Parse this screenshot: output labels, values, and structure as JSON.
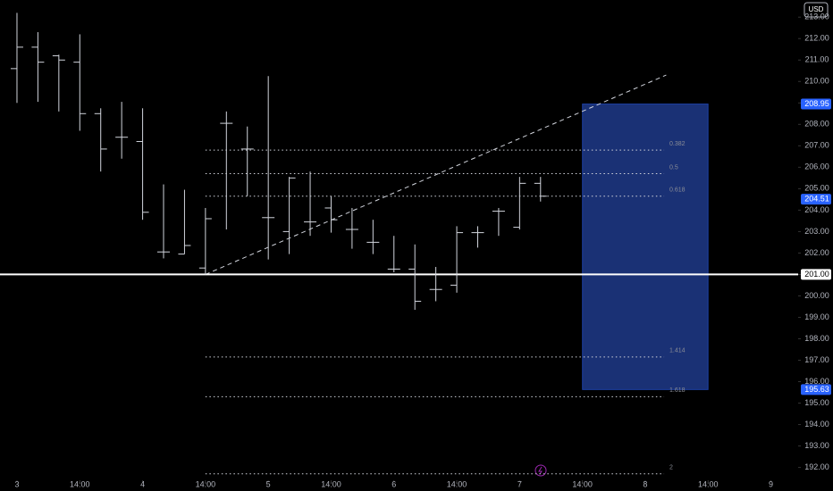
{
  "chart_data": {
    "type": "ohlc",
    "currency": "USD",
    "x": [
      0,
      1,
      2,
      3,
      4,
      5,
      6,
      7,
      8,
      9,
      10,
      11,
      12,
      13,
      14,
      15,
      16,
      17,
      18,
      19,
      20,
      21,
      22,
      23,
      24,
      25
    ],
    "open": [
      210.6,
      211.6,
      211.2,
      210.9,
      208.5,
      207.4,
      207.2,
      202.05,
      201.95,
      201.3,
      208.05,
      206.85,
      203.65,
      203.0,
      203.45,
      204.1,
      203.1,
      202.5,
      201.25,
      201.25,
      200.3,
      200.5,
      202.95,
      203.95,
      203.2,
      205.25
    ],
    "high": [
      213.2,
      212.3,
      211.25,
      212.2,
      208.75,
      209.05,
      208.75,
      205.2,
      204.95,
      204.1,
      208.6,
      207.9,
      210.25,
      205.55,
      205.8,
      204.65,
      204.1,
      203.55,
      202.8,
      202.4,
      201.35,
      203.25,
      203.25,
      204.1,
      205.55,
      205.55
    ],
    "low": [
      209.0,
      209.05,
      208.6,
      207.7,
      205.8,
      206.4,
      203.55,
      201.75,
      201.95,
      201.0,
      203.1,
      204.65,
      201.7,
      201.95,
      202.8,
      202.95,
      202.2,
      201.95,
      201.1,
      199.35,
      199.75,
      200.15,
      202.25,
      202.8,
      203.1,
      204.4
    ],
    "close": [
      211.6,
      210.9,
      211.0,
      208.5,
      206.85,
      207.4,
      203.9,
      202.05,
      202.35,
      203.6,
      208.05,
      206.85,
      203.65,
      205.5,
      203.45,
      203.55,
      203.1,
      202.5,
      201.25,
      199.75,
      200.3,
      202.95,
      202.95,
      203.95,
      205.25,
      204.65
    ],
    "color": "#d1d4dc",
    "xlim": [
      -0.81,
      37.3
    ],
    "xticks": [
      {
        "value": 0,
        "label": "3"
      },
      {
        "value": 3,
        "label": "14:00"
      },
      {
        "value": 6,
        "label": "4"
      },
      {
        "value": 9,
        "label": "14:00"
      },
      {
        "value": 12,
        "label": "5"
      },
      {
        "value": 15,
        "label": "14:00"
      },
      {
        "value": 18,
        "label": "6"
      },
      {
        "value": 21,
        "label": "14:00"
      },
      {
        "value": 24,
        "label": "7"
      },
      {
        "value": 27,
        "label": "14:00"
      },
      {
        "value": 30,
        "label": "8"
      },
      {
        "value": 33,
        "label": "14:00"
      },
      {
        "value": 36,
        "label": "9"
      }
    ],
    "ylim": [
      191.4,
      213.8
    ],
    "yticks": [
      {
        "value": 192,
        "label": "192.00"
      },
      {
        "value": 193,
        "label": "193.00"
      },
      {
        "value": 194,
        "label": "194.00"
      },
      {
        "value": 195,
        "label": "195.00"
      },
      {
        "value": 196,
        "label": "196.00"
      },
      {
        "value": 197,
        "label": "197.00"
      },
      {
        "value": 198,
        "label": "198.00"
      },
      {
        "value": 199,
        "label": "199.00"
      },
      {
        "value": 200,
        "label": "200.00"
      },
      {
        "value": 201,
        "label": "201.00"
      },
      {
        "value": 202,
        "label": "202.00"
      },
      {
        "value": 203,
        "label": "203.00"
      },
      {
        "value": 204,
        "label": "204.00"
      },
      {
        "value": 205,
        "label": "205.00"
      },
      {
        "value": 206,
        "label": "206.00"
      },
      {
        "value": 207,
        "label": "207.00"
      },
      {
        "value": 208,
        "label": "208.00"
      },
      {
        "value": 209,
        "label": "209.00"
      },
      {
        "value": 210,
        "label": "210.00"
      },
      {
        "value": 211,
        "label": "211.00"
      },
      {
        "value": 212,
        "label": "212.00"
      },
      {
        "value": 213,
        "label": "213.00"
      }
    ],
    "horizontal_line": {
      "value": 201,
      "label": "201.00",
      "color": "#ffffff"
    },
    "price_labels": [
      {
        "value": 208.95,
        "label": "208.95"
      },
      {
        "value": 204.51,
        "label": "204.51"
      },
      {
        "value": 195.63,
        "label": "195.63"
      }
    ],
    "range_box": {
      "x_start": 27.0,
      "x_end": 33.0,
      "top": 208.95,
      "bottom": 195.63,
      "color": "#1e3a8a"
    },
    "trend_line": {
      "x": [
        9,
        31.0
      ],
      "y": [
        201.0,
        210.3
      ]
    },
    "fib_levels": {
      "x_start": 9,
      "x_end": 30.9,
      "levels": [
        0.382,
        0.5,
        0.618,
        1.414,
        1.618,
        2
      ],
      "prices": [
        206.8,
        205.7,
        204.65,
        197.15,
        195.3,
        191.7
      ]
    }
  }
}
